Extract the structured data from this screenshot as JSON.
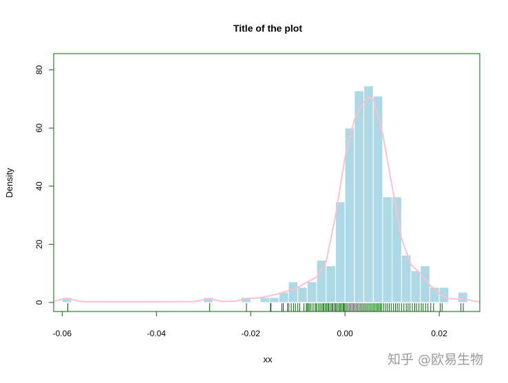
{
  "chart_data": {
    "type": "bar",
    "title": "Title of the plot",
    "xlabel": "xx",
    "ylabel": "Density",
    "xlim": [
      -0.0618,
      0.0286
    ],
    "ylim": [
      -3.1,
      85.6
    ],
    "xticks": [
      -0.06,
      -0.04,
      -0.02,
      0.0,
      0.02
    ],
    "xtick_labels": [
      "-0.06",
      "-0.04",
      "-0.02",
      "0.00",
      "0.02"
    ],
    "yticks": [
      0,
      20,
      40,
      60,
      80
    ],
    "ytick_labels": [
      "0",
      "20",
      "40",
      "60",
      "80"
    ],
    "grid": false,
    "histogram": {
      "bin_width": 0.002,
      "bins": [
        {
          "start": -0.06,
          "density": 1.7
        },
        {
          "start": -0.03,
          "density": 1.7
        },
        {
          "start": -0.022,
          "density": 1.7
        },
        {
          "start": -0.018,
          "density": 1.7
        },
        {
          "start": -0.016,
          "density": 1.7
        },
        {
          "start": -0.014,
          "density": 3.5
        },
        {
          "start": -0.012,
          "density": 7.1
        },
        {
          "start": -0.01,
          "density": 5.2
        },
        {
          "start": -0.008,
          "density": 7.1
        },
        {
          "start": -0.006,
          "density": 14.5
        },
        {
          "start": -0.004,
          "density": 12.6
        },
        {
          "start": -0.002,
          "density": 34.6
        },
        {
          "start": 0.0,
          "density": 60.0
        },
        {
          "start": 0.002,
          "density": 72.8
        },
        {
          "start": 0.004,
          "density": 74.5
        },
        {
          "start": 0.006,
          "density": 71.0
        },
        {
          "start": 0.008,
          "density": 36.3
        },
        {
          "start": 0.01,
          "density": 36.3
        },
        {
          "start": 0.012,
          "density": 16.3
        },
        {
          "start": 0.014,
          "density": 10.9
        },
        {
          "start": 0.016,
          "density": 12.6
        },
        {
          "start": 0.018,
          "density": 5.2
        },
        {
          "start": 0.02,
          "density": 5.2
        },
        {
          "start": 0.024,
          "density": 3.5
        }
      ]
    },
    "density_curve": {
      "x": [
        -0.0618,
        -0.059,
        -0.056,
        -0.05,
        -0.04,
        -0.032,
        -0.029,
        -0.026,
        -0.023,
        -0.021,
        -0.018,
        -0.014,
        -0.01,
        -0.006,
        -0.004,
        -0.002,
        0,
        0.002,
        0.004,
        0.005,
        0.006,
        0.008,
        0.01,
        0.012,
        0.014,
        0.016,
        0.018,
        0.02,
        0.022,
        0.024,
        0.025,
        0.027,
        0.0286
      ],
      "y": [
        0.4,
        1.5,
        0.3,
        0.2,
        0.2,
        0.3,
        1.3,
        0.3,
        0.5,
        1.3,
        1.6,
        3.0,
        5.2,
        8.8,
        14,
        30,
        50,
        63,
        69,
        70.5,
        70,
        58,
        40,
        22,
        13,
        10,
        6,
        3,
        1.3,
        1.2,
        1.3,
        0.6,
        0.2
      ]
    },
    "rug": [
      -0.0588,
      -0.0287,
      -0.0209,
      -0.0158,
      -0.0157,
      -0.0134,
      -0.0131,
      -0.0122,
      -0.0119,
      -0.0114,
      -0.0109,
      -0.0105,
      -0.01,
      -0.0096,
      -0.0087,
      -0.0082,
      -0.008,
      -0.0077,
      -0.0074,
      -0.007,
      -0.0066,
      -0.0062,
      -0.006,
      -0.0056,
      -0.0053,
      -0.005,
      -0.0047,
      -0.0045,
      -0.0042,
      -0.0039,
      -0.0036,
      -0.0034,
      -0.0031,
      -0.0028,
      -0.0026,
      -0.0023,
      -0.002,
      -0.0018,
      -0.0015,
      -0.0012,
      -0.001,
      -0.0007,
      -0.0004,
      -0.0002,
      0.0,
      0.0003,
      0.0006,
      0.0009,
      0.0012,
      0.0015,
      0.0018,
      0.0021,
      0.0024,
      0.0027,
      0.003,
      0.0033,
      0.0036,
      0.0039,
      0.0042,
      0.0045,
      0.0048,
      0.0051,
      0.0054,
      0.0057,
      0.006,
      0.0063,
      0.0066,
      0.0069,
      0.0072,
      0.0075,
      0.0078,
      0.0082,
      0.0086,
      0.009,
      0.0094,
      0.0098,
      0.0103,
      0.0107,
      0.0111,
      0.0115,
      0.012,
      0.0125,
      0.013,
      0.0134,
      0.0138,
      0.0143,
      0.0148,
      0.0152,
      0.0157,
      0.0162,
      0.0166,
      0.0171,
      0.0176,
      0.0182,
      0.0188,
      0.0202,
      0.0206,
      0.0246,
      0.0251
    ],
    "colors": {
      "bar_fill": "#ADD8E6",
      "bar_border": "#FFFFFF",
      "density_line": "#FFC0CB",
      "rug": "#006400",
      "axis": "#006400"
    }
  },
  "watermark": "知乎 @欧易生物"
}
